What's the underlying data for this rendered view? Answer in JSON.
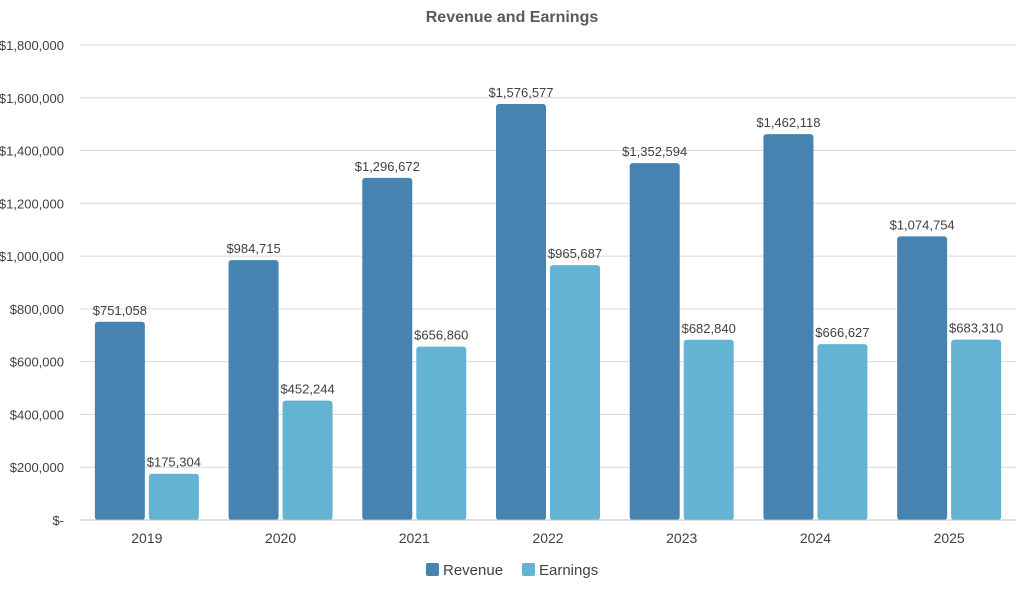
{
  "chart_data": {
    "type": "bar",
    "title": "Revenue and Earnings",
    "xlabel": "",
    "ylabel": "",
    "categories": [
      "2019",
      "2020",
      "2021",
      "2022",
      "2023",
      "2024",
      "2025"
    ],
    "series": [
      {
        "name": "Revenue",
        "color": "#4683b1",
        "values": [
          751058,
          984715,
          1296672,
          1576577,
          1352594,
          1462118,
          1074754
        ],
        "labels": [
          "$751,058",
          "$984,715",
          "$1,296,672",
          "$1,576,577",
          "$1,352,594",
          "$1,462,118",
          "$1,074,754"
        ]
      },
      {
        "name": "Earnings",
        "color": "#63b4d2",
        "values": [
          175304,
          452244,
          656860,
          965687,
          682840,
          666627,
          683310
        ],
        "labels": [
          "$175,304",
          "$452,244",
          "$656,860",
          "$965,687",
          "$682,840",
          "$666,627",
          "$683,310"
        ]
      }
    ],
    "ylim": [
      0,
      1800000
    ],
    "yticks": [
      0,
      200000,
      400000,
      600000,
      800000,
      1000000,
      1200000,
      1400000,
      1600000,
      1800000
    ],
    "ytick_labels": [
      "$-",
      "$200,000",
      "$400,000",
      "$600,000",
      "$800,000",
      "$1,000,000",
      "$1,200,000",
      "$1,400,000",
      "$1,600,000",
      "$1,800,000"
    ],
    "grid": true,
    "legend_position": "bottom"
  }
}
